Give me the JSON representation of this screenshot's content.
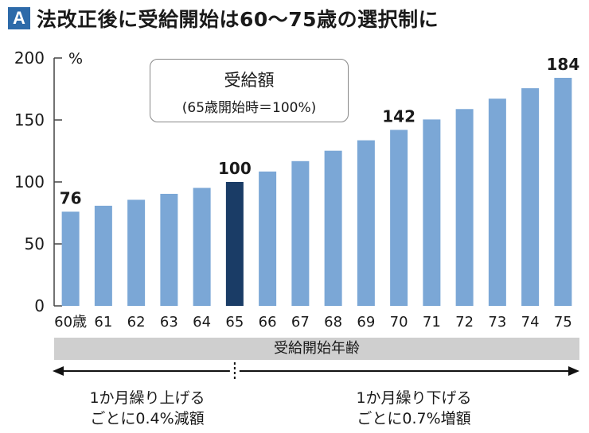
{
  "title": {
    "badge": "A",
    "text": "法改正後に受給開始は60～75歳の選択制に",
    "badge_color": "#2d6aa9"
  },
  "legend": {
    "title": "受給額",
    "subtitle": "(65歳開始時＝100%)"
  },
  "x_band_label": "受給開始年齢",
  "notes": {
    "left": [
      "1か月繰り上げる",
      "ごとに0.4%減額"
    ],
    "right": [
      "1か月繰り下げる",
      "ごとに0.7%増額"
    ]
  },
  "colors": {
    "bar": "#7ba7d6",
    "bar_highlight": "#1a3c66",
    "axis": "#444444",
    "band": "#cfcfcf"
  },
  "chart_data": {
    "type": "bar",
    "categories": [
      "60歳",
      "61",
      "62",
      "63",
      "64",
      "65",
      "66",
      "67",
      "68",
      "69",
      "70",
      "71",
      "72",
      "73",
      "74",
      "75"
    ],
    "values": [
      76,
      80.8,
      85.6,
      90.4,
      95.2,
      100,
      108.4,
      116.8,
      125.2,
      133.6,
      142,
      150.4,
      158.8,
      167.2,
      175.6,
      184
    ],
    "data_labels": [
      {
        "index": 0,
        "text": "76"
      },
      {
        "index": 5,
        "text": "100"
      },
      {
        "index": 10,
        "text": "142"
      },
      {
        "index": 15,
        "text": "184"
      }
    ],
    "highlight_index": 5,
    "ylim": [
      0,
      200
    ],
    "yticks": [
      0,
      50,
      100,
      150,
      200
    ],
    "yunit": "%",
    "xlabel": "受給開始年齢",
    "ylabel": "",
    "grid": false
  }
}
